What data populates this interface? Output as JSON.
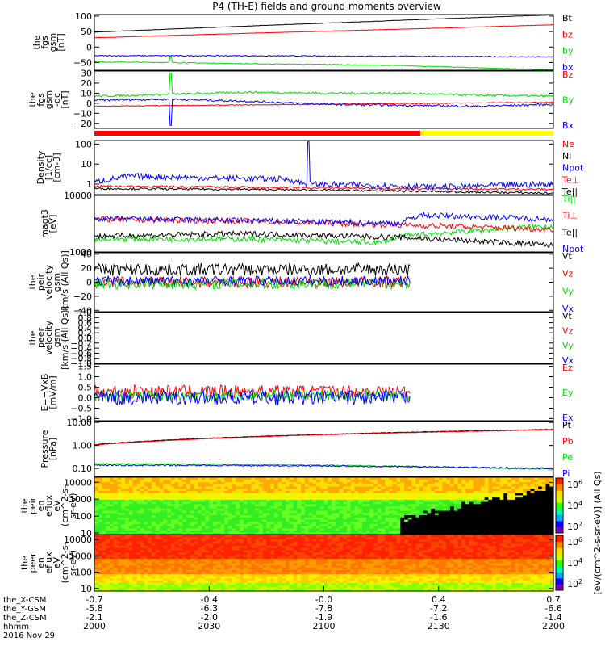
{
  "title": "P4 (TH-E) fields and ground moments overview",
  "colors": {
    "black": "#000000",
    "red": "#ff0000",
    "green": "#00dd00",
    "blue": "#0000ff",
    "yellow": "#ffff00"
  },
  "x_axis": {
    "tick_rows": [
      {
        "label": "the_X-CSM",
        "values": [
          "-0.7",
          "-0.4",
          "-0.0",
          "0.4",
          "0.7"
        ]
      },
      {
        "label": "the_Y-GSM",
        "values": [
          "-5.8",
          "-6.3",
          "-7.8",
          "-7.2",
          "-6.6"
        ]
      },
      {
        "label": "the_Z-CSM",
        "values": [
          "-2.1",
          "-2.0",
          "-1.9",
          "-1.6",
          "-1.4"
        ]
      },
      {
        "label": "hhmm",
        "values": [
          "2000",
          "2030",
          "2100",
          "2130",
          "2200"
        ]
      }
    ],
    "date_label": "2016 Nov 29"
  },
  "colorbar": {
    "label": "[eV/(cm^2-s-sr-eV)] (All Qs)",
    "ticks": [
      "10^6",
      "10^4",
      "10^2"
    ]
  },
  "chart_data": [
    {
      "type": "line",
      "id": "fgs_gsm",
      "ylabel": [
        "the",
        "fgs",
        "gsm",
        "[nT]"
      ],
      "ylim": [
        -75,
        105
      ],
      "yticks": [
        "100",
        "50",
        "0",
        "−50"
      ],
      "ytick_values": [
        100,
        50,
        0,
        -50
      ],
      "series": [
        {
          "name": "Bt",
          "color": "#000000",
          "x": [
            0,
            60,
            120,
            180,
            240
          ],
          "y": [
            48,
            63,
            77,
            91,
            104
          ],
          "noise": 0.5
        },
        {
          "name": "bz",
          "color": "#ff0000",
          "x": [
            0,
            60,
            120,
            180,
            240
          ],
          "y": [
            30,
            41,
            51,
            61,
            72
          ],
          "noise": 0.5
        },
        {
          "name": "by",
          "color": "#00dd00",
          "x": [
            0,
            40,
            80,
            120,
            160,
            200,
            240
          ],
          "y": [
            -48,
            -50,
            -54,
            -56,
            -60,
            -67,
            -74
          ],
          "noise": 1.2,
          "spike_x": 40,
          "spike_y": -30
        },
        {
          "name": "bx",
          "color": "#0000ff",
          "x": [
            0,
            60,
            120,
            180,
            240
          ],
          "y": [
            -28,
            -28,
            -29,
            -30,
            -32
          ],
          "noise": 1.5
        }
      ]
    },
    {
      "type": "line",
      "id": "fgs_gsm_detrended",
      "ylabel": [
        "the",
        "fgs",
        "gsm",
        "-dc",
        "[nT]"
      ],
      "ylim": [
        -25,
        32
      ],
      "yticks": [
        "30",
        "20",
        "10",
        "0",
        "−10",
        "−20"
      ],
      "ytick_values": [
        30,
        20,
        10,
        0,
        -10,
        -20
      ],
      "series": [
        {
          "name": "Bz",
          "color": "#ff0000",
          "x": [
            0,
            60,
            120,
            180,
            240
          ],
          "y": [
            -3,
            -2,
            -1,
            0,
            1
          ],
          "noise": 0.4
        },
        {
          "name": "By",
          "color": "#00dd00",
          "x": [
            0,
            40,
            80,
            120,
            160,
            200,
            240
          ],
          "y": [
            7,
            9,
            11,
            10,
            10,
            8,
            7
          ],
          "noise": 1,
          "spike_x": 40,
          "spike_y": 30
        },
        {
          "name": "Bx",
          "color": "#0000ff",
          "x": [
            0,
            40,
            80,
            120,
            160,
            200,
            240
          ],
          "y": [
            3,
            4,
            2,
            -1,
            -2,
            -3,
            -1
          ],
          "noise": 1,
          "spike_x": 40,
          "spike_y": -22
        }
      ]
    },
    {
      "type": "line",
      "id": "density",
      "scale": "log",
      "ylabel": [
        "Density",
        "[1/cc]",
        "[cm-3]"
      ],
      "ylim": [
        0.3,
        150
      ],
      "yticks": [
        "100",
        "10",
        "1"
      ],
      "ytick_values": [
        100,
        10,
        1
      ],
      "series": [
        {
          "name": "Ne",
          "color": "#ff0000",
          "x": [
            0,
            80,
            160,
            240
          ],
          "y": [
            0.8,
            0.7,
            0.6,
            0.55
          ],
          "noise": 0.05
        },
        {
          "name": "Ni",
          "color": "#000000",
          "x": [
            0,
            80,
            160,
            240
          ],
          "y": [
            0.6,
            0.55,
            0.45,
            0.35
          ],
          "noise": 0.05
        },
        {
          "name": "Npot",
          "color": "#0000ff",
          "x": [
            0,
            20,
            60,
            100,
            110,
            140,
            180,
            240
          ],
          "y": [
            1.2,
            2.5,
            2,
            1.8,
            1,
            0.9,
            0.7,
            1
          ],
          "noise": 0.15,
          "spike_x": 112,
          "spike_y": 140
        },
        {
          "name": "Te⊥",
          "color": "#ff0000",
          "legend_only": true
        },
        {
          "name": "Te||",
          "color": "#000000",
          "legend_only": true
        }
      ]
    },
    {
      "type": "line",
      "id": "temperature",
      "scale": "log",
      "ylabel": [
        "magt3",
        "[eV]"
      ],
      "ylim": [
        1000,
        10000
      ],
      "yticks": [
        "10000",
        "1000"
      ],
      "ytick_values": [
        10000,
        1000
      ],
      "series": [
        {
          "name": "Ti||",
          "color": "#00dd00",
          "x": [
            0,
            80,
            150,
            160,
            240
          ],
          "y": [
            1700,
            1700,
            1450,
            1900,
            2900
          ],
          "noise": 0.05
        },
        {
          "name": "Ti⊥",
          "color": "#ff0000",
          "x": [
            0,
            80,
            160,
            240
          ],
          "y": [
            3800,
            3500,
            3000,
            2500
          ],
          "noise": 0.05
        },
        {
          "name": "Te||",
          "color": "#000000",
          "x": [
            0,
            80,
            160,
            240
          ],
          "y": [
            1900,
            2100,
            1800,
            1300
          ],
          "noise": 0.05
        },
        {
          "name": "Npot",
          "color": "#0000ff",
          "x": [
            0,
            80,
            160,
            170,
            240
          ],
          "y": [
            3900,
            3600,
            3200,
            4500,
            3800
          ],
          "noise": 0.05
        }
      ]
    },
    {
      "type": "line",
      "id": "peir_velocity",
      "ylabel": [
        "the",
        "peir",
        "velocity",
        "gsm",
        "[km/s (All Qs)]"
      ],
      "ylim": [
        -42,
        42
      ],
      "yticks": [
        "40",
        "20",
        "0",
        "−20",
        "−40"
      ],
      "ytick_values": [
        40,
        20,
        0,
        -20,
        -40
      ],
      "x_end": 165,
      "series": [
        {
          "name": "Vt",
          "color": "#000000",
          "x": [
            0,
            165
          ],
          "y": [
            18,
            18
          ],
          "noise": 9
        },
        {
          "name": "Vz",
          "color": "#ff0000",
          "x": [
            0,
            165
          ],
          "y": [
            0,
            0
          ],
          "noise": 8
        },
        {
          "name": "Vy",
          "color": "#00dd00",
          "x": [
            0,
            165
          ],
          "y": [
            -2,
            -2
          ],
          "noise": 8
        },
        {
          "name": "Vx",
          "color": "#0000ff",
          "x": [
            0,
            165
          ],
          "y": [
            2,
            2
          ],
          "noise": 7
        }
      ]
    },
    {
      "type": "line",
      "id": "peer_velocity",
      "ylabel": [
        "the",
        "peer",
        "velocity",
        "gsm",
        "[km/s (All Qs)]"
      ],
      "ylim": [
        -42,
        42
      ],
      "yticks": [
        "1.0",
        "0.8",
        "0.6",
        "0.4",
        "0.2",
        "0.0",
        "−0.2",
        "−0.4",
        "−0.6",
        "−0.8",
        "−1.0"
      ],
      "series": [
        {
          "name": "Vt",
          "color": "#000000"
        },
        {
          "name": "Vz",
          "color": "#ff0000"
        },
        {
          "name": "Vy",
          "color": "#00dd00"
        },
        {
          "name": "Vx",
          "color": "#0000ff"
        }
      ]
    },
    {
      "type": "line",
      "id": "efield",
      "ylabel": [
        "E=−VxB",
        "[mV/m]"
      ],
      "ylim": [
        -1.1,
        1.6
      ],
      "yticks": [
        "1.5",
        "1.0",
        "0.5",
        "0.0",
        "−0.5",
        "−1.0"
      ],
      "ytick_values": [
        1.5,
        1,
        0.5,
        0,
        -0.5,
        -1
      ],
      "x_end": 165,
      "series": [
        {
          "name": "Ez",
          "color": "#ff0000",
          "x": [
            0,
            165
          ],
          "y": [
            0.3,
            0.3
          ],
          "noise": 0.3
        },
        {
          "name": "Ey",
          "color": "#00dd00",
          "x": [
            0,
            165
          ],
          "y": [
            0.1,
            0.1
          ],
          "noise": 0.25
        },
        {
          "name": "Ex",
          "color": "#0000ff",
          "x": [
            0,
            165
          ],
          "y": [
            0,
            0
          ],
          "noise": 0.35
        }
      ]
    },
    {
      "type": "line",
      "id": "pressure",
      "scale": "log",
      "ylabel": [
        "Pressure",
        "[nPa]"
      ],
      "ylim": [
        0.045,
        11
      ],
      "yticks": [
        "10.00",
        "1.00",
        "0.10"
      ],
      "ytick_values": [
        10,
        1,
        0.1
      ],
      "series": [
        {
          "name": "Pt",
          "color": "#000000",
          "x": [
            0,
            240
          ],
          "y": [
            1.1,
            5
          ],
          "noise": 0.01
        },
        {
          "name": "Pb",
          "color": "#ff0000",
          "x": [
            0,
            240
          ],
          "y": [
            1.05,
            4.8
          ],
          "noise": 0.01
        },
        {
          "name": "Pe",
          "color": "#00dd00",
          "x": [
            0,
            120,
            240
          ],
          "y": [
            0.16,
            0.14,
            0.09
          ],
          "noise": 0.03
        },
        {
          "name": "Pi",
          "color": "#0000ff",
          "x": [
            0,
            120,
            240
          ],
          "y": [
            0.14,
            0.13,
            0.1
          ],
          "noise": 0.03
        }
      ]
    },
    {
      "type": "heatmap",
      "id": "peir_eflux",
      "scale": "log",
      "ylabel": [
        "the",
        "peir",
        "en",
        "eflux",
        "eV",
        "(cm^2-s-",
        "sr-eV)"
      ],
      "ylim": [
        8,
        20000
      ],
      "yticks": [
        "10000",
        "1000",
        "100",
        "10"
      ],
      "ytick_values": [
        10000,
        1000,
        100,
        10
      ]
    },
    {
      "type": "heatmap",
      "id": "peer_eflux",
      "scale": "log",
      "ylabel": [
        "the",
        "peer",
        "en",
        "eflux",
        "eV",
        "(cm^2-s-",
        "sr-eV)"
      ],
      "ylim": [
        7,
        20000
      ],
      "yticks": [
        "10000",
        "1000",
        "100",
        "10"
      ],
      "ytick_values": [
        10000,
        1000,
        100,
        10
      ]
    }
  ]
}
